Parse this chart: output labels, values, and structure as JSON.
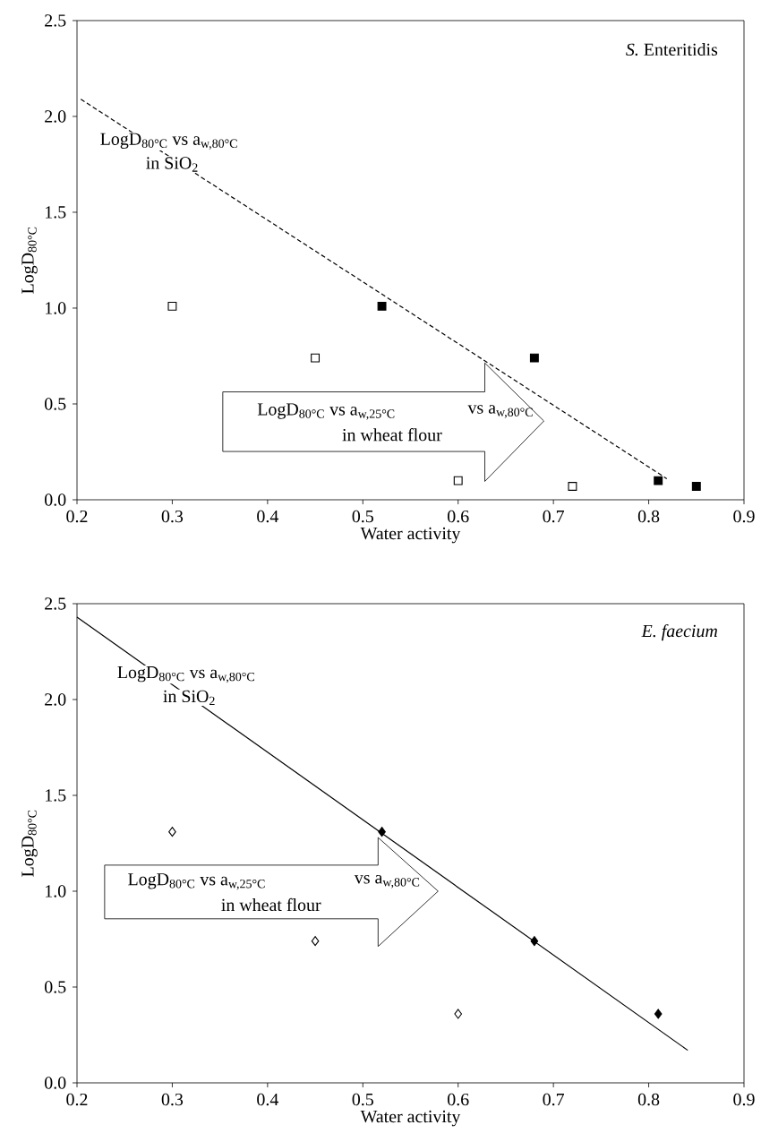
{
  "chart_data": [
    {
      "type": "scatter",
      "title": "*S.* Enteritidis",
      "xlabel": "Water activity",
      "ylabel": "LogD$_{80°C}$",
      "xlim": [
        0.2,
        0.9
      ],
      "xticks": [
        0.2,
        0.3,
        0.4,
        0.5,
        0.6,
        0.7,
        0.8,
        0.9
      ],
      "ylim": [
        0,
        2.5
      ],
      "yticks": [
        {
          "value": 0,
          "label": "0.0"
        },
        0.5,
        {
          "value": 1,
          "label": "1.0"
        },
        1.5,
        {
          "value": 2,
          "label": "2.0"
        },
        2.5
      ],
      "annotations": [
        "LogD$_{80°C}$ vs a$_{w,80°C}$",
        "in SiO$_{2}$",
        "LogD$_{80°C}$ vs a$_{w,25°C}$",
        "vs a$_{w,80°C}$",
        "in wheat flour"
      ],
      "series": [
        {
          "color": "#ffffff",
          "marker": "square",
          "x": [
            0.3,
            0.45,
            0.6,
            0.72
          ],
          "values": [
            1.01,
            0.74,
            0.1,
            0.07
          ]
        },
        {
          "color": "#000000",
          "marker": "square",
          "x": [
            0.52,
            0.68,
            0.81,
            0.85
          ],
          "values": [
            1.01,
            0.74,
            0.1,
            0.07
          ]
        },
        {
          "type": "line",
          "color": "#000000",
          "line_style": "dashed",
          "x": [
            0.204,
            0.819
          ],
          "values": [
            2.09,
            0.11
          ]
        }
      ]
    },
    {
      "type": "scatter",
      "title": "*E. faecium*",
      "xlabel": "Water activity",
      "ylabel": "LogD$_{80°C}$",
      "xlim": [
        0.2,
        0.9
      ],
      "xticks": [
        0.2,
        0.3,
        0.4,
        0.5,
        0.6,
        0.7,
        0.8,
        0.9
      ],
      "ylim": [
        0,
        2.5
      ],
      "yticks": [
        {
          "value": 0,
          "label": "0.0"
        },
        0.5,
        {
          "value": 1,
          "label": "1.0"
        },
        1.5,
        {
          "value": 2,
          "label": "2.0"
        },
        2.5
      ],
      "annotations": [
        "LogD$_{80°C}$ vs a$_{w,80°C}$",
        "in SiO$_{2}$",
        "LogD$_{80°C}$ vs a$_{w,25°C}$",
        "vs a$_{w,80°C}$",
        "in wheat flour"
      ],
      "series": [
        {
          "color": "#ffffff",
          "marker": "diamond",
          "x": [
            0.3,
            0.45,
            0.6
          ],
          "values": [
            1.31,
            0.74,
            0.36
          ]
        },
        {
          "color": "#000000",
          "marker": "diamond",
          "x": [
            0.52,
            0.68,
            0.81
          ],
          "values": [
            1.31,
            0.74,
            0.36
          ]
        },
        {
          "type": "line",
          "color": "#000000",
          "line_style": "solid",
          "x": [
            0.2,
            0.841
          ],
          "values": [
            2.43,
            0.17
          ]
        }
      ]
    }
  ]
}
